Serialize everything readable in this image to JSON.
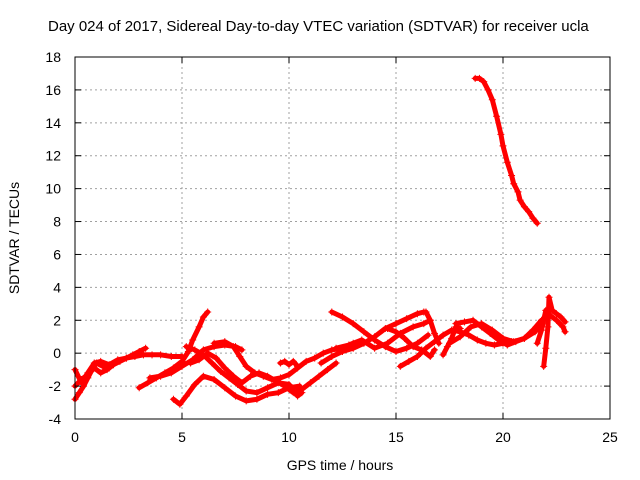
{
  "chart_data": {
    "type": "scatter",
    "title": "Day 024 of 2017, Sidereal Day-to-day VTEC variation (SDTVAR) for receiver ucla",
    "xlabel": "GPS time / hours",
    "ylabel": "SDTVAR / TECUs",
    "xlim": [
      0,
      25
    ],
    "ylim": [
      -4,
      18
    ],
    "xticks": [
      0,
      5,
      10,
      15,
      20,
      25
    ],
    "yticks": [
      -4,
      -2,
      0,
      2,
      4,
      6,
      8,
      10,
      12,
      14,
      16,
      18
    ],
    "grid": true,
    "legend": "none",
    "marker": "+",
    "color": "#ff0000",
    "series": [
      {
        "points": [
          [
            0.0,
            -1.0
          ],
          [
            0.3,
            -1.8
          ],
          [
            0.6,
            -1.2
          ],
          [
            0.9,
            -0.6
          ],
          [
            1.2,
            -0.5
          ],
          [
            1.6,
            -0.7
          ],
          [
            2.0,
            -0.4
          ],
          [
            2.4,
            -0.3
          ],
          [
            2.8,
            -0.2
          ],
          [
            3.2,
            -0.1
          ],
          [
            3.6,
            -0.1
          ],
          [
            4.0,
            -0.1
          ],
          [
            4.5,
            -0.2
          ],
          [
            5.0,
            -0.2
          ]
        ]
      },
      {
        "points": [
          [
            0.0,
            -2.8
          ],
          [
            0.2,
            -2.4
          ],
          [
            0.4,
            -2.0
          ],
          [
            0.6,
            -1.5
          ],
          [
            0.8,
            -1.0
          ],
          [
            1.0,
            -0.6
          ],
          [
            1.3,
            -0.8
          ],
          [
            1.6,
            -0.9
          ]
        ]
      },
      {
        "points": [
          [
            0.0,
            -2.0
          ],
          [
            0.3,
            -1.6
          ],
          [
            0.6,
            -1.3
          ],
          [
            0.9,
            -0.9
          ],
          [
            1.2,
            -1.2
          ],
          [
            1.5,
            -1.0
          ],
          [
            1.8,
            -0.7
          ],
          [
            2.1,
            -0.5
          ],
          [
            2.4,
            -0.3
          ],
          [
            2.7,
            -0.1
          ],
          [
            3.0,
            0.1
          ],
          [
            3.3,
            0.3
          ]
        ]
      },
      {
        "points": [
          [
            3.0,
            -2.1
          ],
          [
            3.4,
            -1.8
          ],
          [
            3.8,
            -1.5
          ],
          [
            4.2,
            -1.2
          ],
          [
            4.6,
            -0.9
          ],
          [
            5.0,
            -0.5
          ],
          [
            5.3,
            0.1
          ],
          [
            5.5,
            0.8
          ],
          [
            5.8,
            1.6
          ],
          [
            6.0,
            2.2
          ],
          [
            6.2,
            2.5
          ]
        ]
      },
      {
        "points": [
          [
            3.5,
            -1.5
          ],
          [
            4.0,
            -1.4
          ],
          [
            4.5,
            -1.2
          ],
          [
            5.0,
            -0.8
          ],
          [
            5.5,
            -0.4
          ],
          [
            6.0,
            0.2
          ],
          [
            6.5,
            0.4
          ],
          [
            7.0,
            0.5
          ],
          [
            7.5,
            0.4
          ],
          [
            7.8,
            0.2
          ]
        ]
      },
      {
        "points": [
          [
            4.6,
            -2.8
          ],
          [
            4.9,
            -3.1
          ],
          [
            5.2,
            -2.6
          ],
          [
            5.6,
            -1.9
          ],
          [
            6.0,
            -1.4
          ],
          [
            6.5,
            -1.6
          ],
          [
            7.0,
            -2.1
          ],
          [
            7.5,
            -2.6
          ],
          [
            8.0,
            -2.9
          ],
          [
            8.5,
            -2.8
          ],
          [
            9.0,
            -2.5
          ],
          [
            9.5,
            -2.4
          ],
          [
            10.0,
            -2.1
          ],
          [
            10.5,
            -2.0
          ]
        ]
      },
      {
        "points": [
          [
            5.2,
            0.4
          ],
          [
            5.6,
            0.2
          ],
          [
            6.0,
            -0.1
          ],
          [
            6.4,
            -0.6
          ],
          [
            6.8,
            -1.1
          ],
          [
            7.2,
            -1.5
          ],
          [
            7.6,
            -1.9
          ],
          [
            8.0,
            -2.3
          ],
          [
            8.5,
            -2.4
          ],
          [
            9.0,
            -2.1
          ],
          [
            9.5,
            -1.8
          ],
          [
            10.0,
            -1.9
          ],
          [
            10.4,
            -2.6
          ],
          [
            10.6,
            -2.4
          ]
        ]
      },
      {
        "points": [
          [
            5.4,
            -0.6
          ],
          [
            5.8,
            -0.4
          ],
          [
            6.2,
            0.0
          ],
          [
            6.6,
            -0.3
          ],
          [
            7.0,
            -0.9
          ],
          [
            7.4,
            -1.4
          ],
          [
            7.8,
            -1.8
          ],
          [
            8.2,
            -1.4
          ],
          [
            8.6,
            -1.2
          ],
          [
            9.0,
            -1.4
          ],
          [
            9.4,
            -1.7
          ],
          [
            9.8,
            -2.0
          ],
          [
            10.2,
            -2.4
          ],
          [
            10.6,
            -2.2
          ],
          [
            11.0,
            -1.8
          ],
          [
            11.4,
            -1.4
          ],
          [
            11.8,
            -1.0
          ],
          [
            12.2,
            -0.6
          ]
        ]
      },
      {
        "points": [
          [
            6.5,
            0.6
          ],
          [
            7.0,
            0.7
          ],
          [
            7.4,
            0.4
          ],
          [
            7.7,
            -0.2
          ],
          [
            8.0,
            -0.8
          ],
          [
            8.4,
            -1.2
          ],
          [
            8.8,
            -1.4
          ],
          [
            9.2,
            -1.6
          ],
          [
            9.6,
            -1.5
          ],
          [
            10.0,
            -1.3
          ],
          [
            10.4,
            -0.9
          ],
          [
            10.8,
            -0.5
          ],
          [
            11.2,
            -0.3
          ],
          [
            11.6,
            0.0
          ],
          [
            12.0,
            0.2
          ],
          [
            12.5,
            0.3
          ],
          [
            13.0,
            0.6
          ]
        ]
      },
      {
        "points": [
          [
            9.6,
            -0.6
          ],
          [
            9.8,
            -0.5
          ],
          [
            10.0,
            -0.7
          ],
          [
            10.2,
            -0.5
          ],
          [
            10.4,
            -0.8
          ]
        ]
      },
      {
        "points": [
          [
            12.0,
            2.5
          ],
          [
            12.5,
            2.2
          ],
          [
            13.0,
            1.8
          ],
          [
            13.5,
            1.3
          ],
          [
            14.0,
            0.8
          ],
          [
            14.5,
            0.4
          ],
          [
            15.0,
            0.1
          ],
          [
            15.5,
            0.3
          ],
          [
            16.0,
            0.6
          ],
          [
            16.5,
            1.1
          ]
        ]
      },
      {
        "points": [
          [
            11.5,
            -0.6
          ],
          [
            12.0,
            -0.2
          ],
          [
            12.5,
            0.1
          ],
          [
            13.0,
            0.3
          ],
          [
            13.5,
            0.6
          ],
          [
            14.0,
            1.0
          ],
          [
            14.5,
            1.5
          ],
          [
            15.0,
            1.8
          ],
          [
            15.5,
            2.1
          ],
          [
            16.0,
            2.4
          ],
          [
            16.3,
            2.5
          ]
        ]
      },
      {
        "points": [
          [
            12.2,
            0.3
          ],
          [
            12.8,
            0.5
          ],
          [
            13.4,
            0.8
          ],
          [
            14.0,
            0.3
          ],
          [
            14.6,
            0.6
          ],
          [
            15.2,
            1.2
          ],
          [
            15.8,
            1.6
          ],
          [
            16.3,
            1.8
          ],
          [
            16.6,
            2.0
          ]
        ]
      },
      {
        "points": [
          [
            14.6,
            1.5
          ],
          [
            15.0,
            1.3
          ],
          [
            15.4,
            0.9
          ],
          [
            15.8,
            0.4
          ],
          [
            16.2,
            0.2
          ],
          [
            16.6,
            -0.2
          ],
          [
            16.8,
            0.2
          ]
        ]
      },
      {
        "points": [
          [
            15.2,
            -0.8
          ],
          [
            15.6,
            -0.5
          ],
          [
            16.0,
            -0.2
          ],
          [
            16.4,
            0.3
          ],
          [
            16.8,
            0.7
          ],
          [
            17.2,
            1.1
          ],
          [
            17.6,
            1.4
          ],
          [
            18.0,
            1.3
          ],
          [
            18.4,
            1.1
          ],
          [
            18.8,
            0.8
          ],
          [
            19.2,
            0.6
          ],
          [
            19.6,
            0.5
          ],
          [
            20.0,
            0.6
          ],
          [
            20.4,
            0.7
          ]
        ]
      },
      {
        "points": [
          [
            16.4,
            2.5
          ],
          [
            16.6,
            2.0
          ],
          [
            16.8,
            1.2
          ],
          [
            17.0,
            0.6
          ]
        ]
      },
      {
        "points": [
          [
            17.2,
            -0.1
          ],
          [
            17.4,
            0.4
          ],
          [
            17.6,
            0.9
          ],
          [
            17.8,
            1.6
          ],
          [
            18.0,
            1.5
          ]
        ]
      },
      {
        "points": [
          [
            17.5,
            0.6
          ],
          [
            18.0,
            1.0
          ],
          [
            18.5,
            1.6
          ],
          [
            19.0,
            1.8
          ],
          [
            19.5,
            1.4
          ],
          [
            20.0,
            0.9
          ],
          [
            20.5,
            0.7
          ],
          [
            21.0,
            0.9
          ],
          [
            21.5,
            1.3
          ],
          [
            21.8,
            1.8
          ]
        ]
      },
      {
        "points": [
          [
            17.8,
            1.8
          ],
          [
            18.2,
            1.9
          ],
          [
            18.6,
            2.0
          ],
          [
            19.0,
            1.6
          ],
          [
            19.4,
            1.2
          ],
          [
            19.8,
            0.8
          ],
          [
            20.2,
            0.5
          ],
          [
            20.6,
            0.7
          ],
          [
            21.0,
            0.9
          ],
          [
            21.4,
            1.4
          ],
          [
            21.8,
            2.0
          ]
        ]
      },
      {
        "points": [
          [
            21.6,
            0.6
          ],
          [
            21.8,
            1.4
          ],
          [
            22.0,
            2.6
          ],
          [
            22.2,
            2.3
          ],
          [
            22.5,
            2.0
          ],
          [
            22.8,
            1.6
          ],
          [
            22.9,
            1.3
          ]
        ]
      },
      {
        "points": [
          [
            21.9,
            -0.8
          ],
          [
            22.0,
            0.3
          ],
          [
            22.1,
            1.6
          ],
          [
            22.15,
            3.4
          ],
          [
            22.3,
            2.6
          ],
          [
            22.5,
            2.4
          ],
          [
            22.7,
            2.2
          ],
          [
            22.9,
            1.9
          ]
        ]
      },
      {
        "points": [
          [
            18.7,
            16.7
          ],
          [
            18.9,
            16.7
          ],
          [
            19.1,
            16.5
          ],
          [
            19.3,
            16.0
          ],
          [
            19.5,
            15.4
          ],
          [
            19.7,
            14.4
          ],
          [
            19.9,
            13.3
          ],
          [
            20.0,
            12.6
          ],
          [
            20.2,
            11.6
          ],
          [
            20.4,
            10.8
          ],
          [
            20.5,
            10.3
          ],
          [
            20.7,
            9.8
          ],
          [
            20.8,
            9.3
          ],
          [
            21.0,
            8.9
          ],
          [
            21.2,
            8.6
          ],
          [
            21.4,
            8.2
          ],
          [
            21.6,
            7.9
          ]
        ]
      }
    ]
  }
}
